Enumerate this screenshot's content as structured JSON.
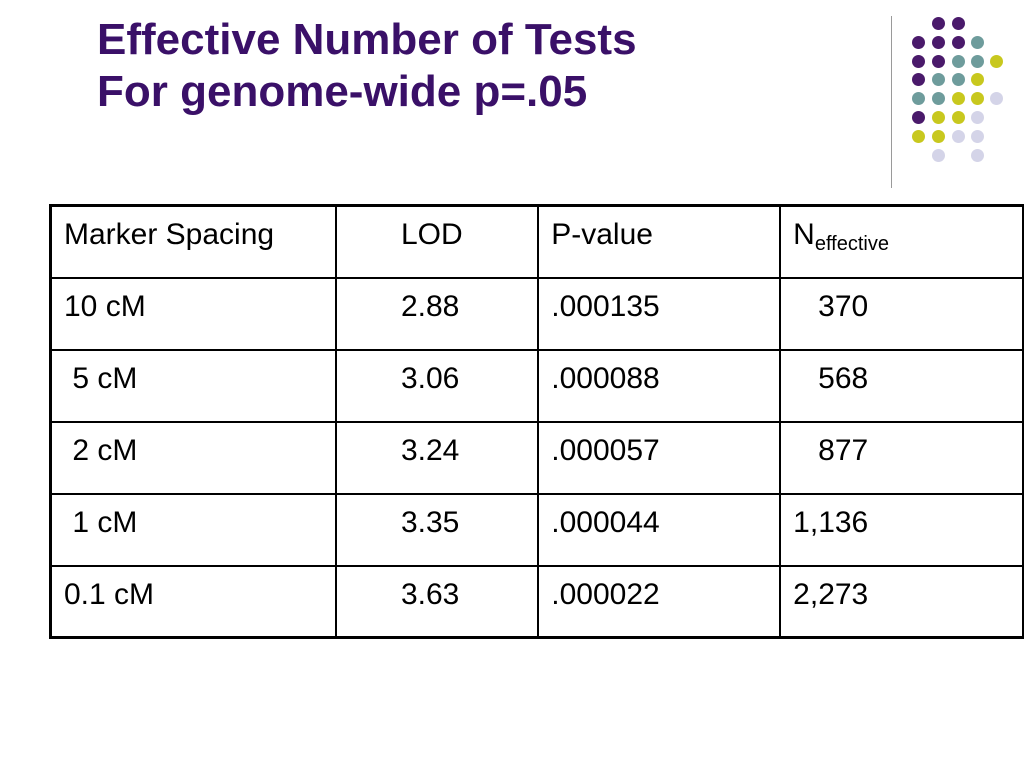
{
  "title": {
    "line1": "Effective Number of Tests",
    "line2": "For genome-wide p=.05"
  },
  "colors": {
    "title": "#3a1068",
    "dot_purple": "#4a1a6b",
    "dot_teal": "#6e9c9c",
    "dot_yellow": "#c8c81e",
    "dot_lavender": "#d4d4e8"
  },
  "table": {
    "headers": {
      "spacing": "Marker Spacing",
      "lod": "LOD",
      "pvalue": "P-value",
      "neff_main": "N",
      "neff_sub": "effective"
    },
    "rows": [
      {
        "spacing": "10 cM",
        "lod": "2.88",
        "pvalue": ".000135",
        "neff": "   370"
      },
      {
        "spacing": " 5 cM",
        "lod": "3.06",
        "pvalue": ".000088",
        "neff": "   568"
      },
      {
        "spacing": " 2 cM",
        "lod": "3.24",
        "pvalue": ".000057",
        "neff": "   877"
      },
      {
        "spacing": " 1 cM",
        "lod": "3.35",
        "pvalue": ".000044",
        "neff": "1,136"
      },
      {
        "spacing": "0.1 cM",
        "lod": "3.63",
        "pvalue": ".000022",
        "neff": "2,273"
      }
    ]
  }
}
